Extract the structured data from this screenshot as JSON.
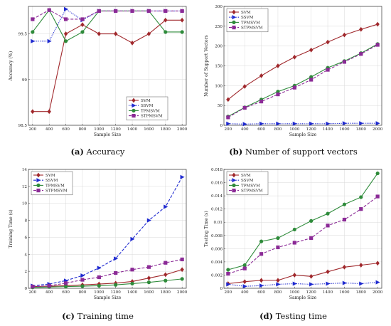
{
  "colors": {
    "SVM": "#a0282c",
    "SSVM": "#1f2ad0",
    "TPMSVM": "#2e8b3a",
    "STPMSVM": "#8b2a96"
  },
  "chart_data": [
    {
      "id": "a",
      "type": "line",
      "caption_letter": "(a)",
      "caption_text": "Accuracy",
      "xlabel": "Sample Size",
      "ylabel": "Accuracy (%)",
      "x": [
        200,
        400,
        600,
        800,
        1000,
        1200,
        1400,
        1600,
        1800,
        2000
      ],
      "xlim": [
        150,
        2050
      ],
      "ylim": [
        98.5,
        99.8
      ],
      "yticks": [
        98.5,
        99,
        99.5
      ],
      "ytick_labels": [
        "98.5",
        "99",
        "99.5"
      ],
      "legend_position": "bottom-right",
      "series": [
        {
          "name": "SVM",
          "marker": "diamond",
          "dash": "solid",
          "values": [
            98.65,
            98.65,
            99.5,
            99.6,
            99.5,
            99.5,
            99.4,
            99.5,
            99.65,
            99.65
          ]
        },
        {
          "name": "SSVM",
          "marker": "triangle-right",
          "dash": "dotted",
          "values": [
            99.42,
            99.42,
            99.77,
            99.65,
            99.75,
            99.75,
            99.75,
            99.75,
            99.75,
            99.75
          ]
        },
        {
          "name": "TPMSVM",
          "marker": "circle",
          "dash": "solid",
          "values": [
            99.52,
            99.76,
            99.42,
            99.52,
            99.75,
            99.75,
            99.75,
            99.75,
            99.52,
            99.52
          ]
        },
        {
          "name": "STPMSVM",
          "marker": "square",
          "dash": "dashed",
          "values": [
            99.66,
            99.76,
            99.66,
            99.66,
            99.75,
            99.75,
            99.75,
            99.75,
            99.75,
            99.75
          ]
        }
      ]
    },
    {
      "id": "b",
      "type": "line",
      "caption_letter": "(b)",
      "caption_text": "Number of support vectors",
      "xlabel": "Sample Size",
      "ylabel": "Number of Support Vectors",
      "x": [
        200,
        400,
        600,
        800,
        1000,
        1200,
        1400,
        1600,
        1800,
        2000
      ],
      "xlim": [
        150,
        2050
      ],
      "ylim": [
        0,
        300
      ],
      "yticks": [
        0,
        50,
        100,
        150,
        200,
        250,
        300
      ],
      "ytick_labels": [
        "0",
        "50",
        "100",
        "150",
        "200",
        "250",
        "300"
      ],
      "legend_position": "top-left",
      "series": [
        {
          "name": "SVM",
          "marker": "diamond",
          "dash": "solid",
          "values": [
            65,
            98,
            125,
            150,
            172,
            190,
            210,
            228,
            242,
            255
          ]
        },
        {
          "name": "SSVM",
          "marker": "triangle-right",
          "dash": "dotted",
          "values": [
            4,
            3,
            4,
            4,
            4,
            4,
            4,
            5,
            5,
            5
          ]
        },
        {
          "name": "TPMSVM",
          "marker": "circle",
          "dash": "solid",
          "values": [
            22,
            45,
            65,
            85,
            100,
            122,
            145,
            162,
            182,
            205
          ]
        },
        {
          "name": "STPMSVM",
          "marker": "square",
          "dash": "dashed",
          "values": [
            20,
            44,
            60,
            78,
            95,
            115,
            140,
            160,
            180,
            203
          ]
        }
      ]
    },
    {
      "id": "c",
      "type": "line",
      "caption_letter": "(c)",
      "caption_text": "Training time",
      "xlabel": "Sample Size",
      "ylabel": "Training Time (s)",
      "x": [
        200,
        400,
        600,
        800,
        1000,
        1200,
        1400,
        1600,
        1800,
        2000
      ],
      "xlim": [
        150,
        2050
      ],
      "ylim": [
        0,
        14
      ],
      "yticks": [
        0,
        2,
        4,
        6,
        8,
        10,
        12,
        14
      ],
      "ytick_labels": [
        "0",
        "2",
        "4",
        "6",
        "8",
        "10",
        "12",
        "14"
      ],
      "legend_position": "top-left",
      "series": [
        {
          "name": "SVM",
          "marker": "diamond",
          "dash": "solid",
          "values": [
            0.2,
            0.25,
            0.3,
            0.4,
            0.5,
            0.6,
            0.8,
            1.2,
            1.6,
            2.2
          ]
        },
        {
          "name": "SSVM",
          "marker": "triangle-right",
          "dash": "dashed",
          "values": [
            0.3,
            0.5,
            0.9,
            1.5,
            2.4,
            3.5,
            5.8,
            8.0,
            9.6,
            13.1
          ]
        },
        {
          "name": "TPMSVM",
          "marker": "circle",
          "dash": "solid",
          "values": [
            0.1,
            0.15,
            0.2,
            0.25,
            0.3,
            0.4,
            0.55,
            0.7,
            0.9,
            1.1
          ]
        },
        {
          "name": "STPMSVM",
          "marker": "square",
          "dash": "dashed",
          "values": [
            0.2,
            0.3,
            0.6,
            1.0,
            1.3,
            1.8,
            2.2,
            2.5,
            3.0,
            3.4
          ]
        }
      ]
    },
    {
      "id": "d",
      "type": "line",
      "caption_letter": "(d)",
      "caption_text": "Testing time",
      "xlabel": "Sample Size",
      "ylabel": "Testing Time (s)",
      "x": [
        200,
        400,
        600,
        800,
        1000,
        1200,
        1400,
        1600,
        1800,
        2000
      ],
      "xlim": [
        150,
        2050
      ],
      "ylim": [
        0,
        0.018
      ],
      "yticks": [
        0,
        0.002,
        0.004,
        0.006,
        0.008,
        0.01,
        0.012,
        0.014,
        0.016,
        0.018
      ],
      "ytick_labels": [
        "0",
        "0.002",
        "0.004",
        "0.006",
        "0.008",
        "0.01",
        "0.012",
        "0.014",
        "0.016",
        "0.018"
      ],
      "legend_position": "top-left",
      "series": [
        {
          "name": "SVM",
          "marker": "diamond",
          "dash": "solid",
          "values": [
            0.0007,
            0.001,
            0.0012,
            0.0012,
            0.002,
            0.0018,
            0.0025,
            0.0032,
            0.0035,
            0.0038
          ]
        },
        {
          "name": "SSVM",
          "marker": "triangle-right",
          "dash": "dotted",
          "values": [
            0.0006,
            0.0003,
            0.0004,
            0.0006,
            0.0007,
            0.0006,
            0.0007,
            0.0008,
            0.0007,
            0.0009
          ]
        },
        {
          "name": "TPMSVM",
          "marker": "circle",
          "dash": "solid",
          "values": [
            0.0028,
            0.0035,
            0.0071,
            0.0076,
            0.0089,
            0.0102,
            0.0113,
            0.0127,
            0.0138,
            0.0174
          ]
        },
        {
          "name": "STPMSVM",
          "marker": "square",
          "dash": "dashed",
          "values": [
            0.0022,
            0.003,
            0.0052,
            0.0062,
            0.0069,
            0.0076,
            0.0095,
            0.0104,
            0.012,
            0.0139
          ]
        }
      ]
    }
  ]
}
